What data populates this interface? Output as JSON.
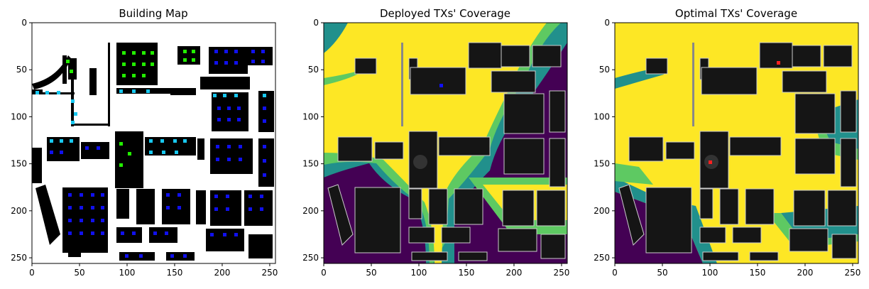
{
  "chart_data": [
    {
      "type": "heatmap",
      "title": "Building Map",
      "xlim": [
        0,
        256
      ],
      "ylim": [
        256,
        0
      ],
      "x_ticks": [
        "0",
        "50",
        "100",
        "150",
        "200",
        "250"
      ],
      "y_ticks": [
        "0",
        "50",
        "100",
        "150",
        "200",
        "250"
      ],
      "colors": {
        "background": "#ffffff",
        "building": "#000000",
        "marker_green": "#22ee00",
        "marker_cyan": "#18c8f0",
        "marker_blue": "#1010ee"
      }
    },
    {
      "type": "heatmap",
      "title": "Deployed TXs' Coverage",
      "xlim": [
        0,
        256
      ],
      "ylim": [
        256,
        0
      ],
      "x_ticks": [
        "0",
        "50",
        "100",
        "150",
        "200",
        "250"
      ],
      "y_ticks": [
        "0",
        "50",
        "100",
        "150",
        "200",
        "250"
      ],
      "colormap": [
        "#440154",
        "#21908c",
        "#5ec962",
        "#fde725"
      ],
      "colors": {
        "building": "#151515",
        "building_edge": "#cccccc",
        "tx_marker": "#1010ff"
      }
    },
    {
      "type": "heatmap",
      "title": "Optimal TXs' Coverage",
      "xlim": [
        0,
        256
      ],
      "ylim": [
        256,
        0
      ],
      "x_ticks": [
        "0",
        "50",
        "100",
        "150",
        "200",
        "250"
      ],
      "y_ticks": [
        "0",
        "50",
        "100",
        "150",
        "200",
        "250"
      ],
      "colormap": [
        "#440154",
        "#21908c",
        "#5ec962",
        "#fde725"
      ],
      "colors": {
        "building": "#151515",
        "building_edge": "#cccccc",
        "tx_marker": "#ff2020"
      }
    }
  ]
}
